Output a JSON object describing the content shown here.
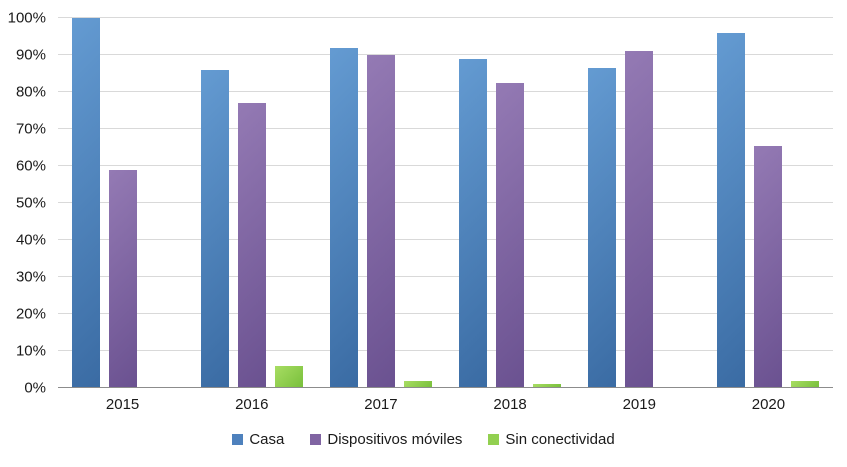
{
  "chart_data": {
    "type": "bar",
    "title": "",
    "xlabel": "",
    "ylabel": "",
    "categories": [
      "2015",
      "2016",
      "2017",
      "2018",
      "2019",
      "2020"
    ],
    "series": [
      {
        "name": "Casa",
        "legend_color": "#4e81bd",
        "fill_light": "#649bd2",
        "fill_dark": "#3a6ba3",
        "values": [
          100,
          86,
          92,
          89,
          86.5,
          96
        ]
      },
      {
        "name": "Dispositivos móviles",
        "legend_color": "#8064a2",
        "fill_light": "#947ab4",
        "fill_dark": "#6a5190",
        "values": [
          59,
          77,
          90,
          82.5,
          91,
          65.5
        ]
      },
      {
        "name": "Sin conectividad",
        "legend_color": "#92d050",
        "fill_light": "#a8dd63",
        "fill_dark": "#77bf3a",
        "values": [
          0,
          6,
          2,
          1,
          0,
          2
        ]
      }
    ],
    "ylim": [
      0,
      100
    ],
    "ytick_step": 10,
    "ytick_suffix": "%",
    "grid": true,
    "legend_position": "bottom"
  }
}
